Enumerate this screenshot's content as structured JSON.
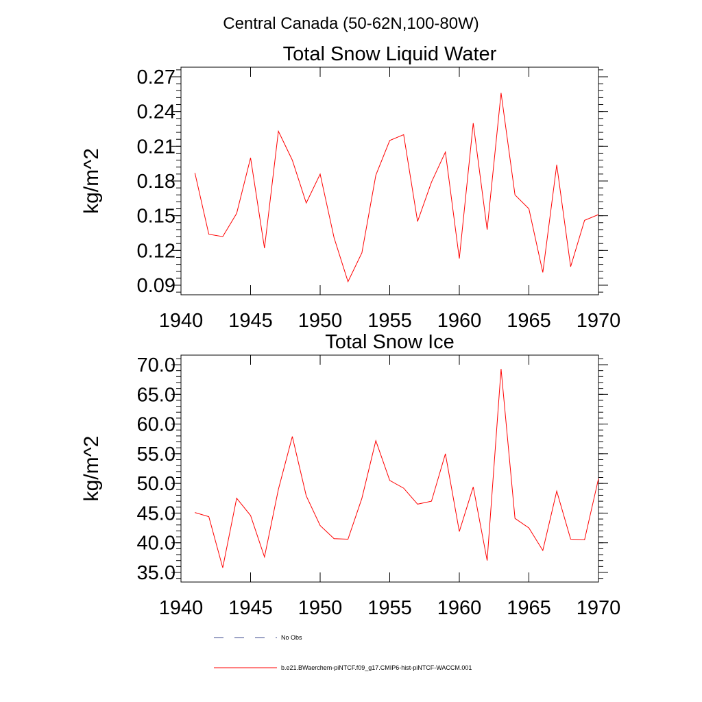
{
  "main_title": "Central Canada (50-62N,100-80W)",
  "legend": [
    {
      "label": "No Obs",
      "color": "#3b4a8c",
      "dash": "dashed"
    },
    {
      "label": "b.e21.BWaerchem-piNTCF.f09_g17.CMIP6-hist-piNTCF-WACCM.001",
      "color": "#ff0000",
      "dash": "solid"
    }
  ],
  "chart_data": [
    {
      "type": "line",
      "title": "Total Snow Liquid Water",
      "xlabel": "",
      "ylabel": "kg/m^2",
      "xlim": [
        1940,
        1970
      ],
      "ylim": [
        0.09,
        0.27
      ],
      "xticks": [
        1940,
        1945,
        1950,
        1955,
        1960,
        1965,
        1970
      ],
      "xtick_labels": [
        "1940",
        "1945",
        "1950",
        "1955",
        "1960",
        "1965",
        "1970"
      ],
      "yticks": [
        0.09,
        0.12,
        0.15,
        0.18,
        0.21,
        0.24,
        0.27
      ],
      "ytick_labels": [
        "0.09",
        "0.12",
        "0.15",
        "0.18",
        "0.21",
        "0.24",
        "0.27"
      ],
      "grid": false,
      "series": [
        {
          "name": "b.e21.BWaerchem-piNTCF.f09_g17.CMIP6-hist-piNTCF-WACCM.001",
          "color": "#ff0000",
          "x": [
            1941,
            1942,
            1943,
            1944,
            1945,
            1946,
            1947,
            1948,
            1949,
            1950,
            1951,
            1952,
            1953,
            1954,
            1955,
            1956,
            1957,
            1958,
            1959,
            1960,
            1961,
            1962,
            1963,
            1964,
            1965,
            1966,
            1967,
            1968,
            1969,
            1970
          ],
          "y": [
            0.187,
            0.134,
            0.132,
            0.152,
            0.2,
            0.122,
            0.223,
            0.198,
            0.161,
            0.186,
            0.131,
            0.093,
            0.118,
            0.185,
            0.215,
            0.22,
            0.145,
            0.179,
            0.205,
            0.113,
            0.23,
            0.138,
            0.256,
            0.168,
            0.156,
            0.101,
            0.194,
            0.106,
            0.146,
            0.151
          ]
        }
      ]
    },
    {
      "type": "line",
      "title": "Total Snow Ice",
      "xlabel": "",
      "ylabel": "kg/m^2",
      "xlim": [
        1940,
        1970
      ],
      "ylim": [
        35.0,
        70.0
      ],
      "xticks": [
        1940,
        1945,
        1950,
        1955,
        1960,
        1965,
        1970
      ],
      "xtick_labels": [
        "1940",
        "1945",
        "1950",
        "1955",
        "1960",
        "1965",
        "1970"
      ],
      "yticks": [
        35,
        40,
        45,
        50,
        55,
        60,
        65,
        70
      ],
      "ytick_labels": [
        "35.0",
        "40.0",
        "45.0",
        "50.0",
        "55.0",
        "60.0",
        "65.0",
        "70.0"
      ],
      "grid": false,
      "series": [
        {
          "name": "b.e21.BWaerchem-piNTCF.f09_g17.CMIP6-hist-piNTCF-WACCM.001",
          "color": "#ff0000",
          "x": [
            1941,
            1942,
            1943,
            1944,
            1945,
            1946,
            1947,
            1948,
            1949,
            1950,
            1951,
            1952,
            1953,
            1954,
            1955,
            1956,
            1957,
            1958,
            1959,
            1960,
            1961,
            1962,
            1963,
            1964,
            1965,
            1966,
            1967,
            1968,
            1969,
            1970
          ],
          "y": [
            45.1,
            44.4,
            35.8,
            47.5,
            44.6,
            37.6,
            49.0,
            57.9,
            47.9,
            42.9,
            40.7,
            40.6,
            47.5,
            57.2,
            50.5,
            49.2,
            46.5,
            47.0,
            55.0,
            41.9,
            49.4,
            37.0,
            69.3,
            44.1,
            42.5,
            38.7,
            48.7,
            40.6,
            40.5,
            50.8
          ]
        }
      ]
    }
  ]
}
